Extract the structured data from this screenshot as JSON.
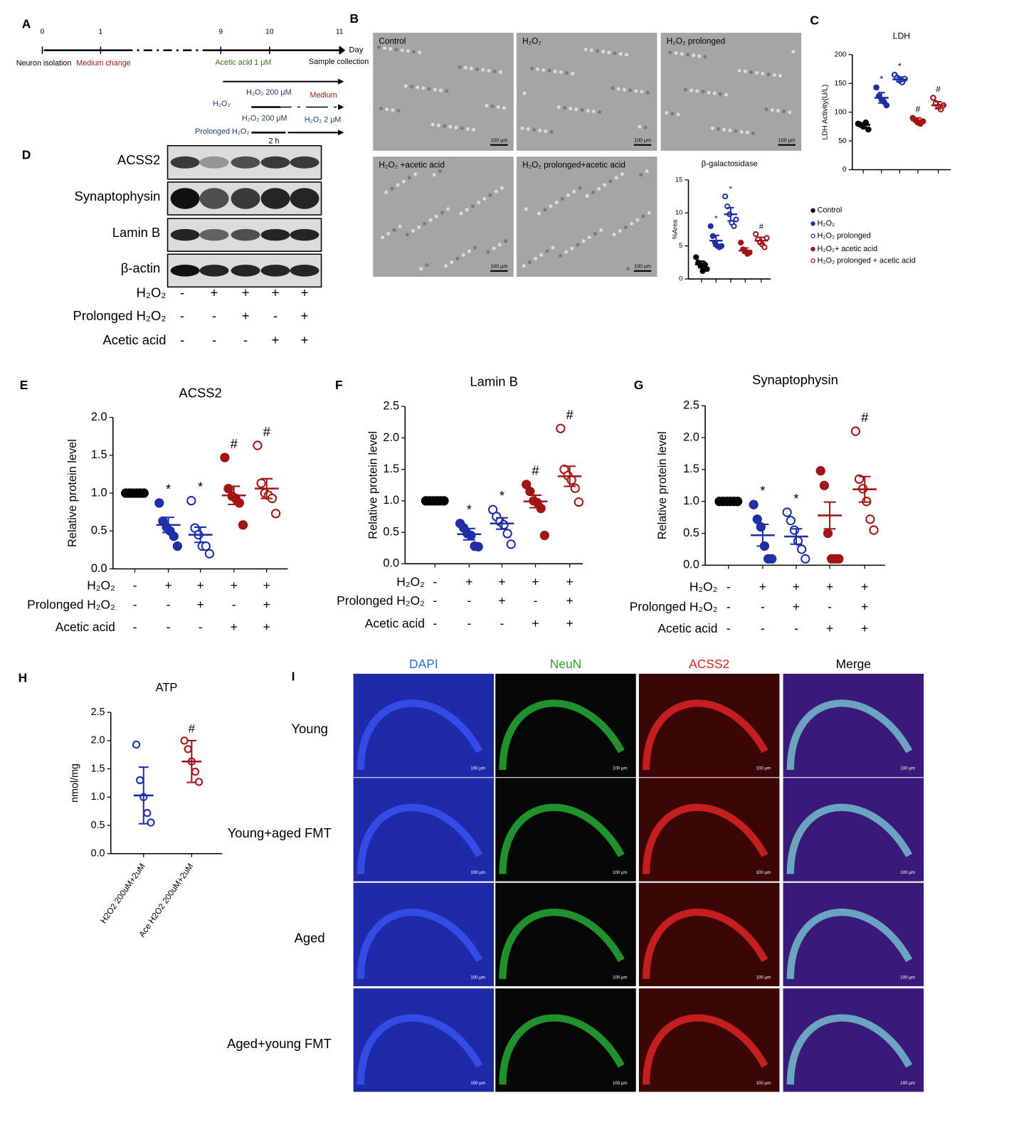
{
  "panel_letters": [
    "A",
    "B",
    "C",
    "D",
    "E",
    "F",
    "G",
    "H",
    "I"
  ],
  "panel_a": {
    "ticks": [
      "0",
      "1",
      "9",
      "10",
      "11"
    ],
    "day": "Day",
    "neuron_isolation": "Neuron isolation",
    "medium_change": "Medium change",
    "acetic_acid": "Acetic acid 1 μM",
    "sample_collection": "Sample collection",
    "h2o2_200_a": "H₂O₂ 200 μM",
    "medium": "Medium",
    "h2o2": "H₂O₂",
    "h2o2_200_b": "H₂O₂ 200 μM",
    "h2o2_2": "H₂O₂ 2 μM",
    "prolonged": "Prolonged H₂O₂",
    "two_h": "2 h"
  },
  "panel_b": {
    "images": [
      "Control",
      "H₂O₂",
      "H₂O₂ prolonged",
      "H₂O₂ +acetic acid",
      "H₂O₂ prolonged+acetic  acid"
    ],
    "scale": "100 μm"
  },
  "panel_d": {
    "bands": [
      "ACSS2",
      "Synaptophysin",
      "Lamin B",
      "β-actin"
    ],
    "conditions": [
      {
        "label": "H₂O₂",
        "signs": [
          "-",
          "+",
          "+",
          "+",
          "+"
        ]
      },
      {
        "label": "Prolonged H₂O₂",
        "signs": [
          "-",
          "-",
          "+",
          "-",
          "+"
        ]
      },
      {
        "label": "Acetic acid",
        "signs": [
          "-",
          "-",
          "-",
          "+",
          "+"
        ]
      }
    ]
  },
  "panel_i": {
    "columns": [
      "DAPI",
      "NeuN",
      "ACSS2",
      "Merge"
    ],
    "rows": [
      "Young",
      "Young+aged FMT",
      "Aged",
      "Aged+young FMT"
    ],
    "scale": "100 μm"
  },
  "chart_data": [
    {
      "type": "dot",
      "title": "LDH",
      "y_label": "LDH Activity(U/L)",
      "ylim": [
        0,
        200
      ],
      "yticks": [
        0,
        50,
        100,
        150,
        200
      ],
      "groups": [
        {
          "name": "Control",
          "color": "#000000",
          "filled": true,
          "mean": 78,
          "error": 3,
          "points": [
            80,
            78,
            75,
            82,
            70
          ]
        },
        {
          "name": "H₂O₂",
          "color": "#1f2fa8",
          "filled": true,
          "mean": 125,
          "error": 9,
          "points": [
            143,
            128,
            122,
            118,
            112
          ],
          "annotation": "*"
        },
        {
          "name": "H₂O₂ prolonged",
          "color": "#1f2fa8",
          "filled": false,
          "mean": 157,
          "error": 4,
          "points": [
            165,
            160,
            155,
            152,
            158
          ],
          "annotation": "*"
        },
        {
          "name": "H₂O₂+ acetic acid",
          "color": "#a31515",
          "filled": true,
          "mean": 86,
          "error": 4,
          "points": [
            90,
            86,
            82,
            80,
            84
          ],
          "annotation": "#"
        },
        {
          "name": "H₂O₂ prolonged + acetic acid",
          "color": "#a31515",
          "filled": false,
          "mean": 112,
          "error": 6,
          "points": [
            125,
            116,
            110,
            105,
            112
          ],
          "annotation": "#"
        }
      ]
    },
    {
      "type": "dot",
      "title": "β-galactosidase",
      "y_label": "%Area",
      "ylim": [
        0,
        15
      ],
      "yticks": [
        0,
        5,
        10,
        15
      ],
      "groups": [
        {
          "color": "#000000",
          "filled": true,
          "mean": 2.2,
          "error": 0.5,
          "points": [
            3.3,
            2.5,
            2.0,
            1.2,
            2.2,
            1.5
          ]
        },
        {
          "color": "#1f2fa8",
          "filled": true,
          "mean": 5.8,
          "error": 0.8,
          "points": [
            8.0,
            6.5,
            5.5,
            5.0,
            4.8,
            5.0
          ],
          "annotation": "*"
        },
        {
          "color": "#1f2fa8",
          "filled": false,
          "mean": 9.8,
          "error": 1.0,
          "points": [
            12.5,
            11,
            9.8,
            8.5,
            8.0,
            9.0
          ],
          "annotation": "*"
        },
        {
          "color": "#a31515",
          "filled": true,
          "mean": 4.3,
          "error": 0.4,
          "points": [
            5.5,
            4.5,
            4.2,
            3.8,
            4.0
          ]
        },
        {
          "color": "#a31515",
          "filled": false,
          "mean": 5.8,
          "error": 0.5,
          "points": [
            6.8,
            6.0,
            5.5,
            5.2,
            4.8,
            6.2
          ],
          "annotation": "#"
        }
      ]
    },
    {
      "type": "dot",
      "title": "ACSS2",
      "y_label": "Relative protein level",
      "ylim": [
        0,
        2
      ],
      "yticks": [
        {
          "value": 0,
          "label": "0.0"
        },
        0.5,
        {
          "value": 1,
          "label": "1.0"
        },
        1.5,
        {
          "value": 2,
          "label": "2.0"
        }
      ],
      "groups": [
        {
          "color": "#000000",
          "filled": true,
          "mean": 1.0,
          "error": 0,
          "points": [
            1,
            1,
            1,
            1,
            1,
            1
          ]
        },
        {
          "color": "#1f2fa8",
          "filled": true,
          "mean": 0.58,
          "error": 0.1,
          "points": [
            0.87,
            0.63,
            0.55,
            0.5,
            0.43,
            0.3
          ],
          "annotation": "*"
        },
        {
          "color": "#1f2fa8",
          "filled": false,
          "mean": 0.45,
          "error": 0.1,
          "points": [
            0.9,
            0.54,
            0.45,
            0.3,
            0.3,
            0.2
          ],
          "annotation": "*"
        },
        {
          "color": "#a31515",
          "filled": true,
          "mean": 0.97,
          "error": 0.12,
          "points": [
            1.47,
            1.06,
            0.96,
            0.93,
            0.87,
            0.58
          ],
          "annotation": "#"
        },
        {
          "color": "#a31515",
          "filled": false,
          "mean": 1.06,
          "error": 0.13,
          "points": [
            1.63,
            1.13,
            1.0,
            0.97,
            0.93,
            0.73
          ],
          "annotation": "#"
        }
      ],
      "conditions": [
        {
          "label": "H₂O₂",
          "signs": [
            "-",
            "+",
            "+",
            "+",
            "+"
          ]
        },
        {
          "label": "Prolonged H₂O₂",
          "signs": [
            "-",
            "-",
            "+",
            "-",
            "+"
          ]
        },
        {
          "label": "Acetic acid",
          "signs": [
            "-",
            "-",
            "-",
            "+",
            "+"
          ]
        }
      ]
    },
    {
      "type": "dot",
      "title": "Lamin B",
      "y_label": "Relative protein level",
      "ylim": [
        0,
        2.5
      ],
      "yticks": [
        {
          "value": 0,
          "label": "0.0"
        },
        0.5,
        {
          "value": 1,
          "label": "1.0"
        },
        1.5,
        {
          "value": 2,
          "label": "2.0"
        },
        2.5
      ],
      "groups": [
        {
          "color": "#000000",
          "filled": true,
          "mean": 1.0,
          "error": 0,
          "points": [
            1,
            1,
            1,
            1,
            1,
            1
          ]
        },
        {
          "color": "#1f2fa8",
          "filled": true,
          "mean": 0.47,
          "error": 0.09,
          "points": [
            0.64,
            0.57,
            0.48,
            0.45,
            0.28,
            0.27
          ],
          "annotation": "*"
        },
        {
          "color": "#1f2fa8",
          "filled": false,
          "mean": 0.64,
          "error": 0.09,
          "points": [
            0.86,
            0.75,
            0.67,
            0.62,
            0.48,
            0.31
          ],
          "annotation": "*"
        },
        {
          "color": "#a31515",
          "filled": true,
          "mean": 0.99,
          "error": 0.1,
          "points": [
            1.26,
            1.15,
            1.0,
            0.97,
            0.88,
            0.45
          ],
          "annotation": "#"
        },
        {
          "color": "#a31515",
          "filled": false,
          "mean": 1.39,
          "error": 0.16,
          "points": [
            2.15,
            1.5,
            1.4,
            1.33,
            1.2,
            0.98
          ],
          "annotation": "#"
        }
      ],
      "conditions": [
        {
          "label": "H₂O₂",
          "signs": [
            "-",
            "+",
            "+",
            "+",
            "+"
          ]
        },
        {
          "label": "Prolonged H₂O₂",
          "signs": [
            "-",
            "-",
            "+",
            "-",
            "+"
          ]
        },
        {
          "label": "Acetic acid",
          "signs": [
            "-",
            "-",
            "-",
            "+",
            "+"
          ]
        }
      ]
    },
    {
      "type": "dot",
      "title": "Synaptophysin",
      "y_label": "Relative protein level",
      "ylim": [
        0,
        2.5
      ],
      "yticks": [
        {
          "value": 0,
          "label": "0.0"
        },
        0.5,
        {
          "value": 1,
          "label": "1.0"
        },
        1.5,
        {
          "value": 2,
          "label": "2.0"
        },
        2.5
      ],
      "groups": [
        {
          "color": "#000000",
          "filled": true,
          "mean": 1.0,
          "error": 0,
          "points": [
            1,
            1,
            1,
            1,
            1,
            1
          ]
        },
        {
          "color": "#1f2fa8",
          "filled": true,
          "mean": 0.47,
          "error": 0.17,
          "points": [
            0.95,
            0.72,
            0.6,
            0.3,
            0.1,
            0.1
          ],
          "annotation": "*"
        },
        {
          "color": "#1f2fa8",
          "filled": false,
          "mean": 0.45,
          "error": 0.12,
          "points": [
            0.83,
            0.7,
            0.55,
            0.38,
            0.25,
            0.1
          ],
          "annotation": "*"
        },
        {
          "color": "#a31515",
          "filled": true,
          "mean": 0.78,
          "error": 0.21,
          "points": [
            1.48,
            1.25,
            0.5,
            0.1,
            0.1,
            0.1
          ]
        },
        {
          "color": "#a31515",
          "filled": false,
          "mean": 1.19,
          "error": 0.2,
          "points": [
            2.1,
            1.35,
            1.2,
            1.0,
            0.72,
            0.55
          ],
          "annotation": "#"
        }
      ],
      "conditions": [
        {
          "label": "H₂O₂",
          "signs": [
            "-",
            "+",
            "+",
            "+",
            "+"
          ]
        },
        {
          "label": "Prolonged H₂O₂",
          "signs": [
            "-",
            "-",
            "+",
            "-",
            "+"
          ]
        },
        {
          "label": "Acetic acid",
          "signs": [
            "-",
            "-",
            "-",
            "+",
            "+"
          ]
        }
      ]
    },
    {
      "type": "dot",
      "title": "ATP",
      "y_label": "nmol/mg",
      "ylim": [
        0,
        2.5
      ],
      "yticks": [
        {
          "value": 0,
          "label": "0.0"
        },
        0.5,
        {
          "value": 1,
          "label": "1.0"
        },
        1.5,
        {
          "value": 2,
          "label": "2.0"
        },
        2.5
      ],
      "categories": [
        "H2O2 200uM+2uM",
        "Ace H2O2 200uM+2uM"
      ],
      "groups": [
        {
          "color": "#1f2fa8",
          "filled": false,
          "mean": 1.03,
          "error": 0.5,
          "points": [
            1.93,
            1.3,
            1.0,
            0.72,
            0.55
          ]
        },
        {
          "color": "#a31515",
          "filled": false,
          "mean": 1.63,
          "error": 0.37,
          "points": [
            2.0,
            1.85,
            1.63,
            1.45,
            1.27
          ],
          "annotation": "#"
        }
      ]
    }
  ]
}
